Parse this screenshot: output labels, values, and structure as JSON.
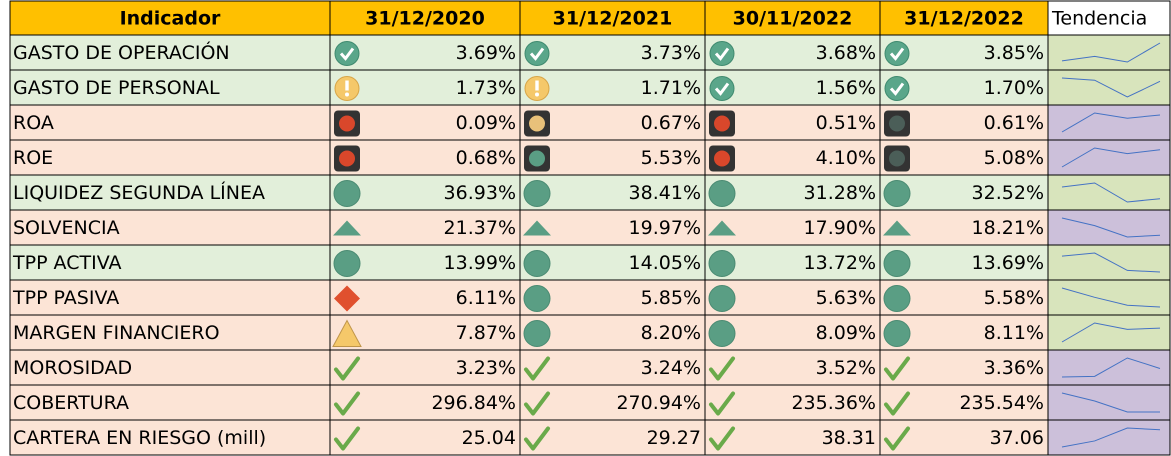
{
  "table": {
    "header": [
      "Indicador",
      "31/12/2020",
      "31/12/2021",
      "30/11/2022",
      "31/12/2022",
      "Tendencia"
    ],
    "header_color": "#ffc000",
    "rows": [
      {
        "name": "GASTO DE OPERACIÓN",
        "values": [
          3.69,
          3.73,
          3.68,
          3.85
        ],
        "value_labels": [
          "3.69%",
          "3.73%",
          "3.68%",
          "3.85%"
        ],
        "icons": [
          "check",
          "check",
          "check",
          "check"
        ],
        "color": "#e2efda",
        "trend_color": "#d8e4bc"
      },
      {
        "name": "GASTO DE PERSONAL",
        "values": [
          1.73,
          1.71,
          1.56,
          1.7
        ],
        "value_labels": [
          "1.73%",
          "1.71%",
          "1.56%",
          "1.70%"
        ],
        "icons": [
          "warn",
          "warn",
          "check",
          "check"
        ],
        "color": "#e2efda",
        "trend_color": "#d8e4bc"
      },
      {
        "name": "ROA",
        "values": [
          0.09,
          0.67,
          0.51,
          0.61
        ],
        "value_labels": [
          "0.09%",
          "0.67%",
          "0.51%",
          "0.61%"
        ],
        "icons": [
          "light-red",
          "light-amber",
          "light-red",
          "light-dark"
        ],
        "color": "#fce4d6",
        "trend_color": "#ccc0da"
      },
      {
        "name": "ROE",
        "values": [
          0.68,
          5.53,
          4.1,
          5.08
        ],
        "value_labels": [
          "0.68%",
          "5.53%",
          "4.10%",
          "5.08%"
        ],
        "icons": [
          "light-red",
          "light-green",
          "light-red",
          "light-dark"
        ],
        "color": "#fce4d6",
        "trend_color": "#ccc0da"
      },
      {
        "name": "LIQUIDEZ SEGUNDA LÍNEA",
        "values": [
          36.93,
          38.41,
          31.28,
          32.52
        ],
        "value_labels": [
          "36.93%",
          "38.41%",
          "31.28%",
          "32.52%"
        ],
        "icons": [
          "circle",
          "circle",
          "circle",
          "circle"
        ],
        "color": "#e2efda",
        "trend_color": "#d8e4bc"
      },
      {
        "name": "SOLVENCIA",
        "values": [
          21.37,
          19.97,
          17.9,
          18.21
        ],
        "value_labels": [
          "21.37%",
          "19.97%",
          "17.90%",
          "18.21%"
        ],
        "icons": [
          "triangle",
          "triangle",
          "triangle",
          "triangle"
        ],
        "color": "#fce4d6",
        "trend_color": "#ccc0da"
      },
      {
        "name": "TPP ACTIVA",
        "values": [
          13.99,
          14.05,
          13.72,
          13.69
        ],
        "value_labels": [
          "13.99%",
          "14.05%",
          "13.72%",
          "13.69%"
        ],
        "icons": [
          "circle",
          "circle",
          "circle",
          "circle"
        ],
        "color": "#e2efda",
        "trend_color": "#d8e4bc"
      },
      {
        "name": "TPP PASIVA",
        "values": [
          6.11,
          5.85,
          5.63,
          5.58
        ],
        "value_labels": [
          "6.11%",
          "5.85%",
          "5.63%",
          "5.58%"
        ],
        "icons": [
          "diamond",
          "circle",
          "circle",
          "circle"
        ],
        "color": "#fce4d6",
        "trend_color": "#d8e4bc"
      },
      {
        "name": "MARGEN FINANCIERO",
        "values": [
          7.87,
          8.2,
          8.09,
          8.11
        ],
        "value_labels": [
          "7.87%",
          "8.20%",
          "8.09%",
          "8.11%"
        ],
        "icons": [
          "triangle-amber",
          "circle",
          "circle",
          "circle"
        ],
        "color": "#fce4d6",
        "trend_color": "#d8e4bc"
      },
      {
        "name": "MOROSIDAD",
        "values": [
          3.23,
          3.24,
          3.52,
          3.36
        ],
        "value_labels": [
          "3.23%",
          "3.24%",
          "3.52%",
          "3.36%"
        ],
        "icons": [
          "tick",
          "tick",
          "tick",
          "tick"
        ],
        "color": "#fce4d6",
        "trend_color": "#ccc0da"
      },
      {
        "name": "COBERTURA",
        "values": [
          296.84,
          270.94,
          235.36,
          235.54
        ],
        "value_labels": [
          "296.84%",
          "270.94%",
          "235.36%",
          "235.54%"
        ],
        "icons": [
          "tick",
          "tick",
          "tick",
          "tick"
        ],
        "color": "#fce4d6",
        "trend_color": "#ccc0da"
      },
      {
        "name": "CARTERA EN RIESGO (mill)",
        "values": [
          25.04,
          29.27,
          38.31,
          37.06
        ],
        "icons": [
          "tick",
          "tick",
          "tick",
          "tick"
        ],
        "color": "#fce4d6",
        "trend_color": "#ccc0da"
      }
    ]
  }
}
